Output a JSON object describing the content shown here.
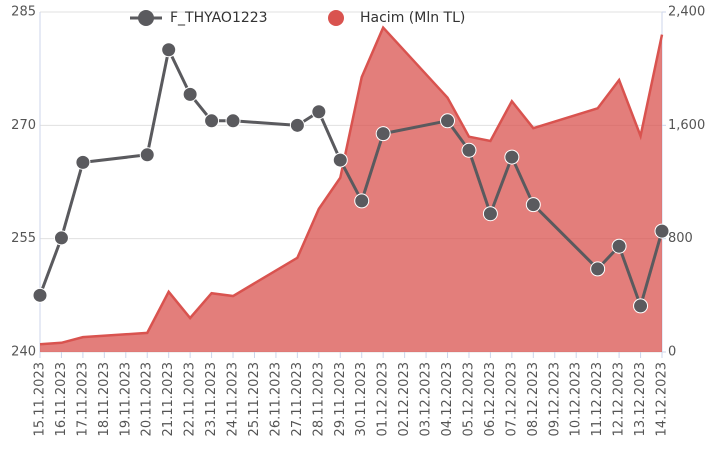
{
  "chart_data": {
    "type": "line",
    "categories": [
      "15.11.2023",
      "16.11.2023",
      "17.11.2023",
      "18.11.2023",
      "19.11.2023",
      "20.11.2023",
      "21.11.2023",
      "22.11.2023",
      "23.11.2023",
      "24.11.2023",
      "25.11.2023",
      "26.11.2023",
      "27.11.2023",
      "28.11.2023",
      "29.11.2023",
      "30.11.2023",
      "01.12.2023",
      "02.12.2023",
      "03.12.2023",
      "04.12.2023",
      "05.12.2023",
      "06.12.2023",
      "07.12.2023",
      "08.12.2023",
      "09.12.2023",
      "10.12.2023",
      "11.12.2023",
      "12.12.2023",
      "13.12.2023",
      "14.12.2023"
    ],
    "series": [
      {
        "name": "F_THYAO1223",
        "type": "line",
        "color": "#5a5a5e",
        "x": [
          "15.11.2023",
          "16.11.2023",
          "17.11.2023",
          "20.11.2023",
          "21.11.2023",
          "22.11.2023",
          "23.11.2023",
          "24.11.2023",
          "27.11.2023",
          "28.11.2023",
          "29.11.2023",
          "30.11.2023",
          "01.12.2023",
          "04.12.2023",
          "05.12.2023",
          "06.12.2023",
          "07.12.2023",
          "08.12.2023",
          "11.12.2023",
          "12.12.2023",
          "13.12.2023",
          "14.12.2023"
        ],
        "values": [
          247.5,
          255.1,
          265.1,
          266.1,
          280,
          274.1,
          270.6,
          270.6,
          270,
          271.8,
          265.4,
          260,
          268.9,
          270.6,
          266.7,
          258.3,
          265.8,
          259.5,
          251,
          254,
          246.1,
          256
        ]
      },
      {
        "name": "Hacim (Mln TL)",
        "type": "area",
        "axis": "y2",
        "color": "#d9534f",
        "x": [
          "15.11.2023",
          "16.11.2023",
          "17.11.2023",
          "20.11.2023",
          "21.11.2023",
          "22.11.2023",
          "23.11.2023",
          "24.11.2023",
          "27.11.2023",
          "28.11.2023",
          "29.11.2023",
          "30.11.2023",
          "01.12.2023",
          "04.12.2023",
          "05.12.2023",
          "06.12.2023",
          "07.12.2023",
          "08.12.2023",
          "11.12.2023",
          "12.12.2023",
          "13.12.2023",
          "14.12.2023"
        ],
        "values": [
          55,
          65,
          105,
          135,
          425,
          240,
          415,
          395,
          665,
          1010,
          1230,
          1940,
          2290,
          1795,
          1520,
          1490,
          1770,
          1580,
          1720,
          1920,
          1525,
          2240
        ]
      }
    ],
    "ylim": [
      240,
      285
    ],
    "yticks": [
      240,
      255,
      270,
      285
    ],
    "y2lim": [
      0,
      2400
    ],
    "y2ticks": [
      0,
      800,
      {
        "value": 1600,
        "label": "1,600"
      },
      {
        "value": 2400,
        "label": "2,400"
      }
    ],
    "grid": true
  }
}
